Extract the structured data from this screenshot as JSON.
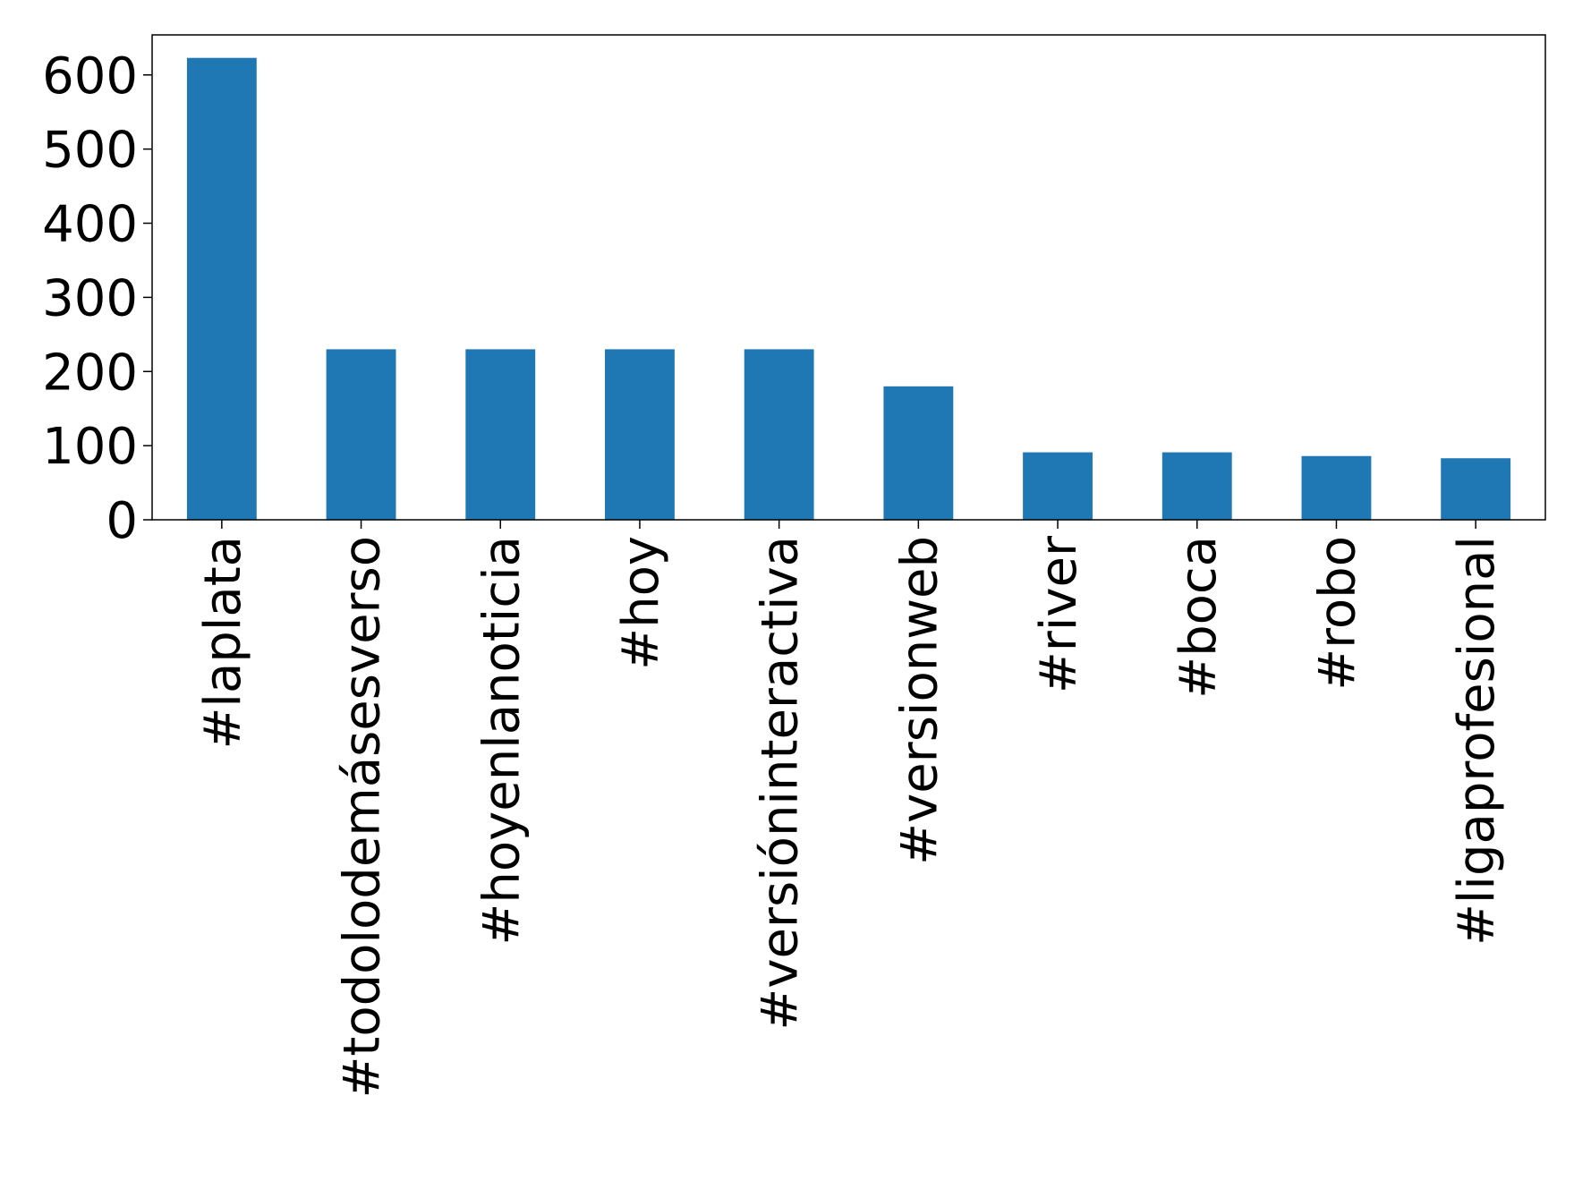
{
  "chart_data": {
    "type": "bar",
    "categories": [
      "#laplata",
      "#todolodemásesverso",
      "#hoyenlanoticia",
      "#hoy",
      "#versióninteractiva",
      "#versionweb",
      "#river",
      "#boca",
      "#robo",
      "#ligaprofesional"
    ],
    "values": [
      623,
      230,
      230,
      230,
      230,
      180,
      91,
      91,
      86,
      83
    ],
    "color": "#1f77b4",
    "ylim": [
      0,
      654
    ],
    "yticks": [
      0,
      100,
      200,
      300,
      400,
      500,
      600
    ],
    "grid": false
  }
}
